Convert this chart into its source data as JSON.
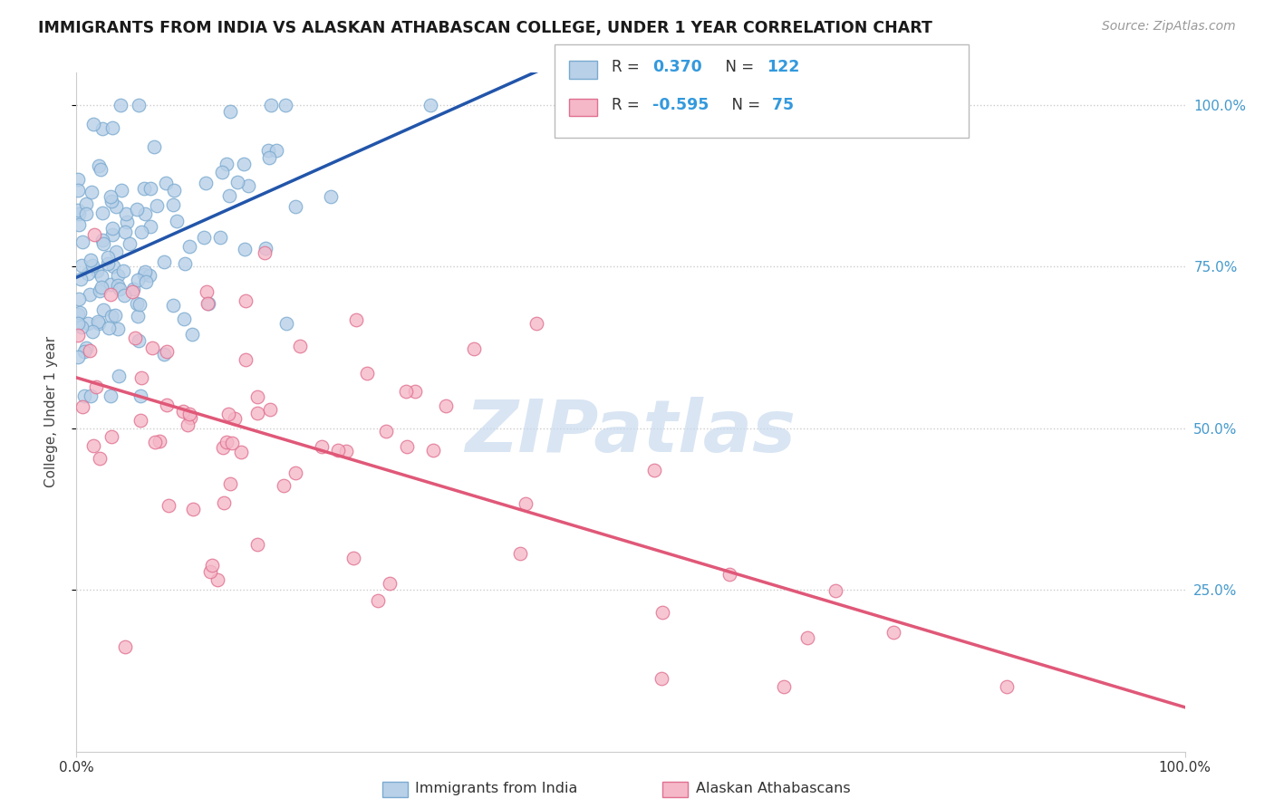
{
  "title": "IMMIGRANTS FROM INDIA VS ALASKAN ATHABASCAN COLLEGE, UNDER 1 YEAR CORRELATION CHART",
  "source": "Source: ZipAtlas.com",
  "ylabel": "College, Under 1 year",
  "xlim": [
    0.0,
    1.0
  ],
  "ylim": [
    0.0,
    1.05
  ],
  "india_color": "#b8d0e8",
  "india_edge_color": "#7aaad0",
  "alaska_color": "#f5b8c8",
  "alaska_edge_color": "#e07090",
  "india_line_color": "#2255aa",
  "alaska_line_color": "#e05878",
  "india_R": 0.37,
  "india_N": 122,
  "alaska_R": -0.595,
  "alaska_N": 75,
  "watermark_text": "ZIPatlas",
  "watermark_color": "#c5d8ee",
  "grid_color": "#cccccc",
  "right_tick_color": "#4499cc",
  "bottom_tick_color": "#333333",
  "y_ticks": [
    0.25,
    0.5,
    0.75,
    1.0
  ],
  "y_tick_labels": [
    "25.0%",
    "50.0%",
    "75.0%",
    "100.0%"
  ],
  "x_ticks": [
    0.0,
    1.0
  ],
  "x_tick_labels": [
    "0.0%",
    "100.0%"
  ],
  "legend_R1": "R =",
  "legend_V1": " 0.370",
  "legend_N1": "N = 122",
  "legend_R2": "R =",
  "legend_V2": "-0.595",
  "legend_N2": "N =  75",
  "bottom_label1": "Immigrants from India",
  "bottom_label2": "Alaskan Athabascans",
  "india_seed": 12,
  "alaska_seed": 7
}
